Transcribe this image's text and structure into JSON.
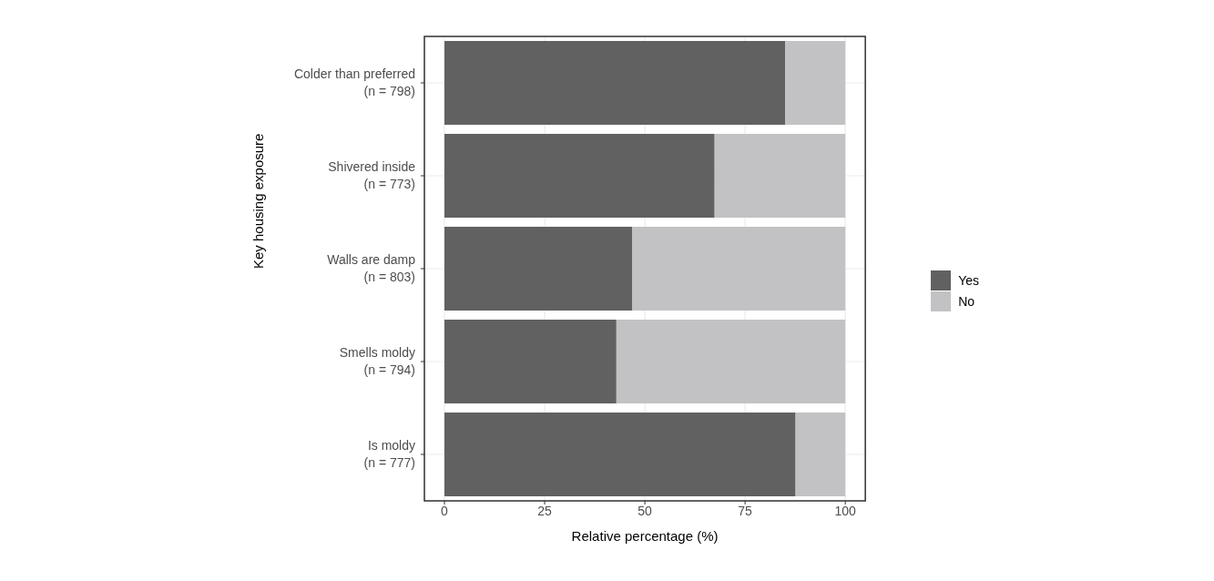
{
  "chart_data": {
    "type": "bar",
    "orientation": "horizontal",
    "stacked": true,
    "categories": [
      "Colder than preferred\n(n = 798)",
      "Shivered inside\n(n = 773)",
      "Walls are damp\n(n = 803)",
      "Smells moldy\n(n = 794)",
      "Is moldy\n(n = 777)"
    ],
    "series": [
      {
        "name": "Yes",
        "color": "#616161",
        "values": [
          85,
          67.4,
          46.8,
          42.9,
          87.6
        ]
      },
      {
        "name": "No",
        "color": "#c2c2c4",
        "values": [
          15,
          32.6,
          53.2,
          57.1,
          12.4
        ]
      }
    ],
    "xlabel": "Relative percentage (%)",
    "ylabel": "Key housing exposure",
    "xlim": [
      -5,
      105
    ],
    "xticks": [
      0,
      25,
      50,
      75,
      100
    ],
    "grid": true,
    "legend": "right"
  }
}
